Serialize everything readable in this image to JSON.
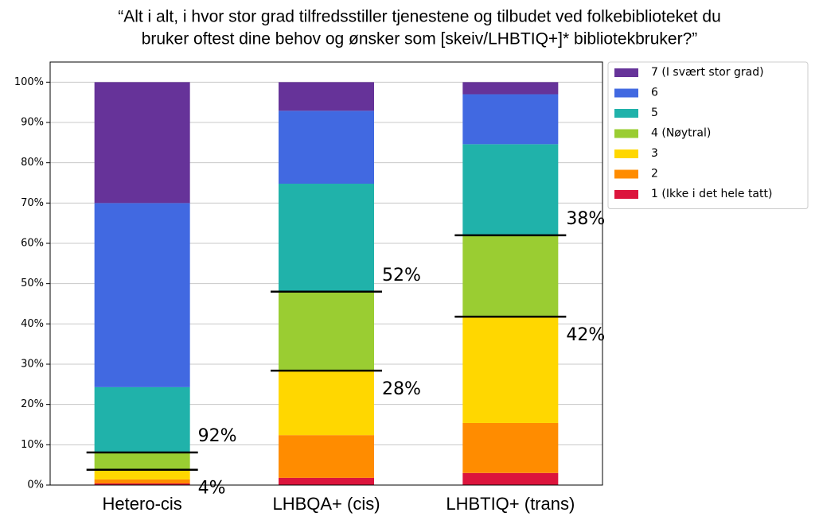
{
  "chart_data": {
    "type": "stacked_bar",
    "title": [
      "“Alt i alt, i hvor stor grad tilfredsstiller tjenestene og tilbudet ved folkebiblioteket du",
      "bruker oftest dine behov og ønsker som [skeiv/LHBTIQ+]* bibliotekbruker?”"
    ],
    "categories": [
      "Hetero-cis",
      "LHBQA+ (cis)",
      "LHBTIQ+ (trans)"
    ],
    "series": [
      {
        "name": "7 (I svært stor grad)",
        "color": "#663399",
        "values": [
          30.0,
          7.1,
          3.0
        ]
      },
      {
        "name": "6",
        "color": "#4169e1",
        "values": [
          45.7,
          18.1,
          12.4
        ]
      },
      {
        "name": "5",
        "color": "#20b2aa",
        "values": [
          16.2,
          26.8,
          22.6
        ]
      },
      {
        "name": "4 (Nøytral)",
        "color": "#9acd32",
        "values": [
          4.3,
          19.6,
          20.2
        ]
      },
      {
        "name": "3",
        "color": "#ffd700",
        "values": [
          2.4,
          16.0,
          26.4
        ]
      },
      {
        "name": "2",
        "color": "#ff8c00",
        "values": [
          1.0,
          10.6,
          12.4
        ]
      },
      {
        "name": "1 (Ikke i det hele tatt)",
        "color": "#dc143c",
        "values": [
          0.4,
          1.8,
          3.0
        ]
      }
    ],
    "annotations": [
      [
        "4%",
        "92%"
      ],
      [
        "28%",
        "52%"
      ],
      [
        "42%",
        "38%"
      ]
    ],
    "ylim": [
      0,
      105
    ],
    "yticks": [
      {
        "value": 0,
        "label": "0%"
      },
      {
        "value": 10,
        "label": "10%"
      },
      {
        "value": 20,
        "label": "20%"
      },
      {
        "value": 30,
        "label": "30%"
      },
      {
        "value": 40,
        "label": "40%"
      },
      {
        "value": 50,
        "label": "50%"
      },
      {
        "value": 60,
        "label": "60%"
      },
      {
        "value": 70,
        "label": "70%"
      },
      {
        "value": 80,
        "label": "80%"
      },
      {
        "value": 90,
        "label": "90%"
      },
      {
        "value": 100,
        "label": "100%"
      }
    ],
    "grid": true,
    "legend": "upper right outside"
  }
}
